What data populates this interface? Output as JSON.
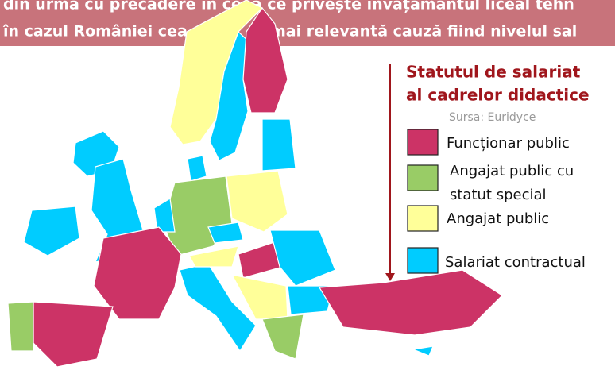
{
  "banner": {
    "line1": "din urmă cu precădere în ceea ce privește învățământul liceal tehn",
    "line2_left": "în cazul României cea",
    "line2_right": "mai relevantă cauză fiind nivelul sal"
  },
  "legend": {
    "title": [
      "Statutul de salariat",
      "al cadrelor didactice"
    ],
    "source": "Sursa: Euridyce",
    "items": [
      {
        "label": [
          "Funcționar public"
        ],
        "color": "#cc3366"
      },
      {
        "label": [
          "Angajat public cu",
          "statut special"
        ],
        "color": "#99cc66"
      },
      {
        "label": [
          "Angajat public"
        ],
        "color": "#ffff99"
      },
      {
        "label": [
          "Salariat contractual"
        ],
        "color": "#00ccff"
      }
    ]
  }
}
